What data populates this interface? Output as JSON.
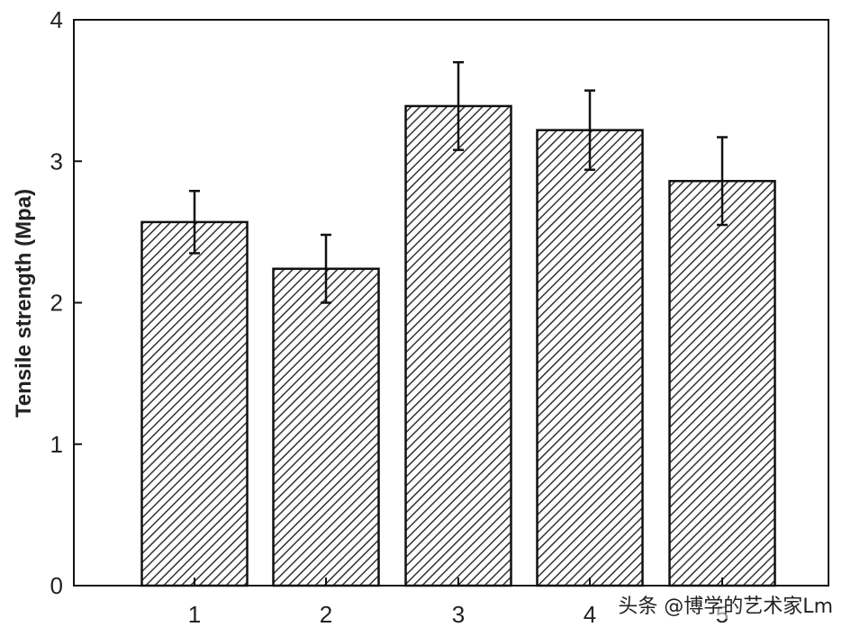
{
  "chart_data": {
    "type": "bar",
    "title": "",
    "xlabel": "",
    "ylabel": "Tensile strength (Mpa)",
    "categories": [
      "1",
      "2",
      "3",
      "4",
      "5"
    ],
    "values": [
      2.57,
      2.24,
      3.39,
      3.22,
      2.86
    ],
    "errors": [
      0.22,
      0.24,
      0.31,
      0.28,
      0.31
    ],
    "ylim": [
      0,
      4
    ],
    "yticks": [
      "0",
      "1",
      "2",
      "3",
      "4"
    ],
    "bar_pattern": "diagonal-hatch",
    "grid": false,
    "colors": {
      "bar_hatch": "#333333",
      "bar_fill": "#ffffff",
      "axis": "#111111"
    }
  },
  "watermark": "头条 @博学的艺术家Lm"
}
